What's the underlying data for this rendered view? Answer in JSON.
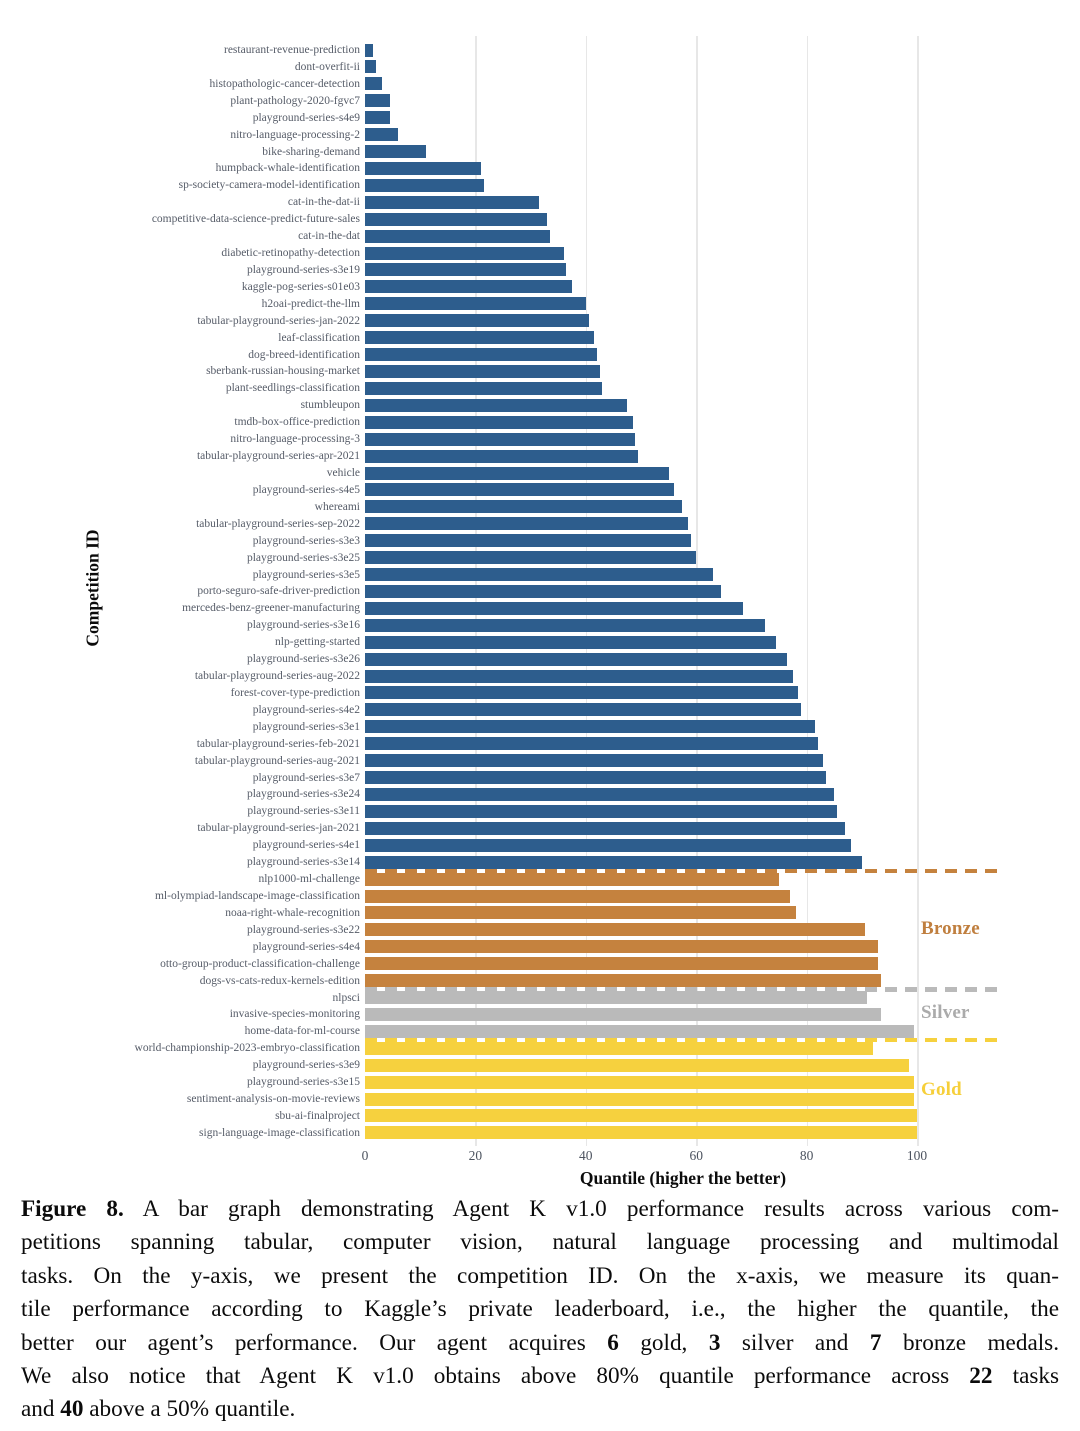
{
  "figure": {
    "y_axis_label": "Competition ID",
    "x_axis_label": "Quantile (higher the better)",
    "legend": {
      "bronze": "Bronze",
      "silver": "Silver",
      "gold": "Gold"
    }
  },
  "colors": {
    "none": "#2d5d8d",
    "bronze": "#c5823e",
    "silver": "#bababa",
    "gold": "#f6d13e",
    "bronze_text": "#c07f3f",
    "silver_text": "#ababab",
    "gold_text": "#f6cf3a",
    "grid": "#e7e7e7"
  },
  "chart_data": {
    "type": "bar",
    "orientation": "horizontal",
    "title": "",
    "xlabel": "Quantile (higher the better)",
    "ylabel": "Competition ID",
    "xlim": [
      0,
      100
    ],
    "x_ticks": [
      0,
      20,
      40,
      60,
      80,
      100
    ],
    "grid": true,
    "legend_position": "right",
    "medal_groups": [
      "none",
      "bronze",
      "silver",
      "gold"
    ],
    "bars": [
      {
        "label": "restaurant-revenue-prediction",
        "value": 1.5,
        "medal": "none"
      },
      {
        "label": "dont-overfit-ii",
        "value": 2,
        "medal": "none"
      },
      {
        "label": "histopathologic-cancer-detection",
        "value": 3,
        "medal": "none"
      },
      {
        "label": "plant-pathology-2020-fgvc7",
        "value": 4.5,
        "medal": "none"
      },
      {
        "label": "playground-series-s4e9",
        "value": 4.5,
        "medal": "none"
      },
      {
        "label": "nitro-language-processing-2",
        "value": 6,
        "medal": "none"
      },
      {
        "label": "bike-sharing-demand",
        "value": 11,
        "medal": "none"
      },
      {
        "label": "humpback-whale-identification",
        "value": 21,
        "medal": "none"
      },
      {
        "label": "sp-society-camera-model-identification",
        "value": 21.5,
        "medal": "none"
      },
      {
        "label": "cat-in-the-dat-ii",
        "value": 31.5,
        "medal": "none"
      },
      {
        "label": "competitive-data-science-predict-future-sales",
        "value": 33,
        "medal": "none"
      },
      {
        "label": "cat-in-the-dat",
        "value": 33.5,
        "medal": "none"
      },
      {
        "label": "diabetic-retinopathy-detection",
        "value": 36,
        "medal": "none"
      },
      {
        "label": "playground-series-s3e19",
        "value": 36.5,
        "medal": "none"
      },
      {
        "label": "kaggle-pog-series-s01e03",
        "value": 37.5,
        "medal": "none"
      },
      {
        "label": "h2oai-predict-the-llm",
        "value": 40,
        "medal": "none"
      },
      {
        "label": "tabular-playground-series-jan-2022",
        "value": 40.5,
        "medal": "none"
      },
      {
        "label": "leaf-classification",
        "value": 41.5,
        "medal": "none"
      },
      {
        "label": "dog-breed-identification",
        "value": 42,
        "medal": "none"
      },
      {
        "label": "sberbank-russian-housing-market",
        "value": 42.5,
        "medal": "none"
      },
      {
        "label": "plant-seedlings-classification",
        "value": 43,
        "medal": "none"
      },
      {
        "label": "stumbleupon",
        "value": 47.5,
        "medal": "none"
      },
      {
        "label": "tmdb-box-office-prediction",
        "value": 48.5,
        "medal": "none"
      },
      {
        "label": "nitro-language-processing-3",
        "value": 49,
        "medal": "none"
      },
      {
        "label": "tabular-playground-series-apr-2021",
        "value": 49.5,
        "medal": "none"
      },
      {
        "label": "vehicle",
        "value": 55,
        "medal": "none"
      },
      {
        "label": "playground-series-s4e5",
        "value": 56,
        "medal": "none"
      },
      {
        "label": "whereami",
        "value": 57.5,
        "medal": "none"
      },
      {
        "label": "tabular-playground-series-sep-2022",
        "value": 58.5,
        "medal": "none"
      },
      {
        "label": "playground-series-s3e3",
        "value": 59,
        "medal": "none"
      },
      {
        "label": "playground-series-s3e25",
        "value": 60,
        "medal": "none"
      },
      {
        "label": "playground-series-s3e5",
        "value": 63,
        "medal": "none"
      },
      {
        "label": "porto-seguro-safe-driver-prediction",
        "value": 64.5,
        "medal": "none"
      },
      {
        "label": "mercedes-benz-greener-manufacturing",
        "value": 68.5,
        "medal": "none"
      },
      {
        "label": "playground-series-s3e16",
        "value": 72.5,
        "medal": "none"
      },
      {
        "label": "nlp-getting-started",
        "value": 74.5,
        "medal": "none"
      },
      {
        "label": "playground-series-s3e26",
        "value": 76.5,
        "medal": "none"
      },
      {
        "label": "tabular-playground-series-aug-2022",
        "value": 77.5,
        "medal": "none"
      },
      {
        "label": "forest-cover-type-prediction",
        "value": 78.5,
        "medal": "none"
      },
      {
        "label": "playground-series-s4e2",
        "value": 79,
        "medal": "none"
      },
      {
        "label": "playground-series-s3e1",
        "value": 81.5,
        "medal": "none"
      },
      {
        "label": "tabular-playground-series-feb-2021",
        "value": 82,
        "medal": "none"
      },
      {
        "label": "tabular-playground-series-aug-2021",
        "value": 83,
        "medal": "none"
      },
      {
        "label": "playground-series-s3e7",
        "value": 83.5,
        "medal": "none"
      },
      {
        "label": "playground-series-s3e24",
        "value": 85,
        "medal": "none"
      },
      {
        "label": "playground-series-s3e11",
        "value": 85.5,
        "medal": "none"
      },
      {
        "label": "tabular-playground-series-jan-2021",
        "value": 87,
        "medal": "none"
      },
      {
        "label": "playground-series-s4e1",
        "value": 88,
        "medal": "none"
      },
      {
        "label": "playground-series-s3e14",
        "value": 90,
        "medal": "none"
      },
      {
        "label": "nlp1000-ml-challenge",
        "value": 75,
        "medal": "bronze"
      },
      {
        "label": "ml-olympiad-landscape-image-classification",
        "value": 77,
        "medal": "bronze"
      },
      {
        "label": "noaa-right-whale-recognition",
        "value": 78,
        "medal": "bronze"
      },
      {
        "label": "playground-series-s3e22",
        "value": 90.5,
        "medal": "bronze"
      },
      {
        "label": "playground-series-s4e4",
        "value": 93,
        "medal": "bronze"
      },
      {
        "label": "otto-group-product-classification-challenge",
        "value": 93,
        "medal": "bronze"
      },
      {
        "label": "dogs-vs-cats-redux-kernels-edition",
        "value": 93.5,
        "medal": "bronze"
      },
      {
        "label": "nlpsci",
        "value": 91,
        "medal": "silver"
      },
      {
        "label": "invasive-species-monitoring",
        "value": 93.5,
        "medal": "silver"
      },
      {
        "label": "home-data-for-ml-course",
        "value": 99.5,
        "medal": "silver"
      },
      {
        "label": "world-championship-2023-embryo-classification",
        "value": 92,
        "medal": "gold"
      },
      {
        "label": "playground-series-s3e9",
        "value": 98.5,
        "medal": "gold"
      },
      {
        "label": "playground-series-s3e15",
        "value": 99.5,
        "medal": "gold"
      },
      {
        "label": "sentiment-analysis-on-movie-reviews",
        "value": 99.5,
        "medal": "gold"
      },
      {
        "label": "sbu-ai-finalproject",
        "value": 100,
        "medal": "gold"
      },
      {
        "label": "sign-language-image-classification",
        "value": 100,
        "medal": "gold"
      }
    ],
    "medal_counts": {
      "gold": 6,
      "silver": 3,
      "bronze": 7
    }
  },
  "caption": {
    "lines": [
      [
        {
          "t": "Figure 8.",
          "b": true
        },
        {
          "t": " A bar graph demonstrating Agent K v1.0 performance results across various com-",
          "b": false
        }
      ],
      [
        {
          "t": "petitions spanning tabular, computer vision, natural language processing and multimodal",
          "b": false
        }
      ],
      [
        {
          "t": "tasks.  On the y-axis, we present the competition ID. On the x-axis, we measure its quan-",
          "b": false
        }
      ],
      [
        {
          "t": "tile performance according to Kaggle’s private leaderboard, i.e., the higher the quantile, the",
          "b": false
        }
      ],
      [
        {
          "t": "better our agent’s performance.  Our agent acquires ",
          "b": false
        },
        {
          "t": "6",
          "b": true
        },
        {
          "t": " gold, ",
          "b": false
        },
        {
          "t": "3",
          "b": true
        },
        {
          "t": " silver and ",
          "b": false
        },
        {
          "t": "7",
          "b": true
        },
        {
          "t": " bronze medals.",
          "b": false
        }
      ],
      [
        {
          "t": "We also notice that Agent K v1.0 obtains above 80% quantile performance across ",
          "b": false
        },
        {
          "t": "22",
          "b": true
        },
        {
          "t": " tasks",
          "b": false
        }
      ],
      [
        {
          "t": "and ",
          "b": false
        },
        {
          "t": "40",
          "b": true
        },
        {
          "t": " above a 50% quantile.",
          "b": false
        }
      ]
    ]
  }
}
